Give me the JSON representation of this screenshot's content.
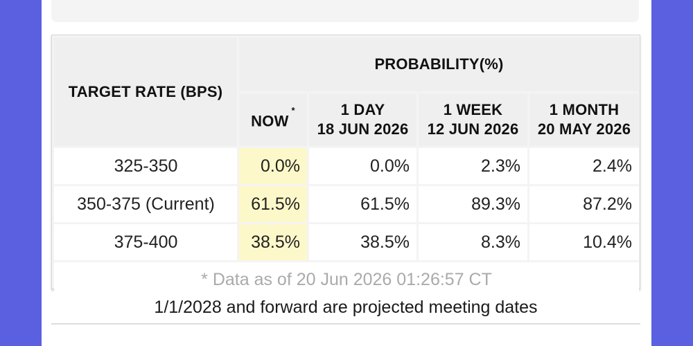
{
  "colors": {
    "side": "#5b60e0",
    "highlight": "#fdf8c9"
  },
  "table": {
    "header_target": "TARGET RATE (BPS)",
    "header_probability": "PROBABILITY(%)",
    "columns": [
      {
        "line1": "NOW",
        "marker": "*",
        "line2": ""
      },
      {
        "line1": "1 DAY",
        "line2": "18 JUN 2026"
      },
      {
        "line1": "1 WEEK",
        "line2": "12 JUN 2026"
      },
      {
        "line1": "1 MONTH",
        "line2": "20 MAY 2026"
      }
    ],
    "rows": [
      {
        "rate": "325-350",
        "values": [
          "0.0%",
          "0.0%",
          "2.3%",
          "2.4%"
        ]
      },
      {
        "rate": "350-375 (Current)",
        "values": [
          "61.5%",
          "61.5%",
          "89.3%",
          "87.2%"
        ]
      },
      {
        "rate": "375-400",
        "values": [
          "38.5%",
          "38.5%",
          "8.3%",
          "10.4%"
        ]
      }
    ],
    "footnote": "* Data as of 20 Jun 2026 01:26:57 CT"
  },
  "note": "1/1/2028 and forward are projected meeting dates"
}
